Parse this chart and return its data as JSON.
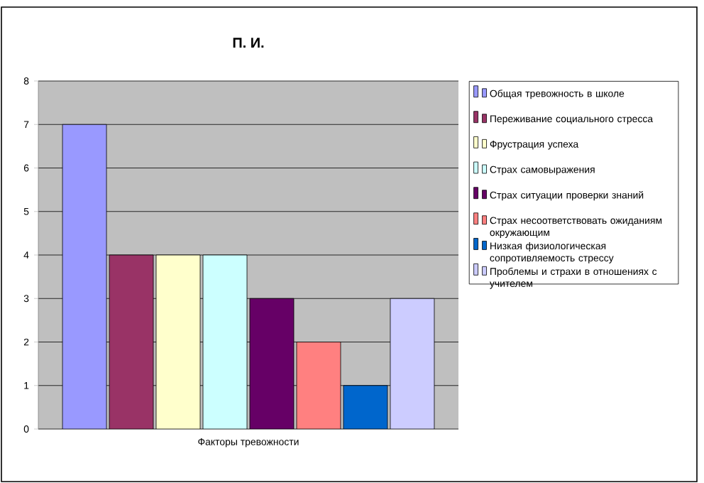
{
  "chart_data": {
    "type": "bar",
    "title": "П. И.",
    "categories": [
      "Факторы тревожности"
    ],
    "series": [
      {
        "name": "Общая тревожность в школе",
        "color": "#9999ff",
        "values": [
          7
        ]
      },
      {
        "name": "Переживание социального стресса",
        "color": "#993366",
        "values": [
          4
        ]
      },
      {
        "name": "Фрустрация успеха",
        "color": "#ffffcc",
        "values": [
          4
        ]
      },
      {
        "name": "Страх самовыражения",
        "color": "#ccffff",
        "values": [
          4
        ]
      },
      {
        "name": "Страх ситуации проверки знаний",
        "color": "#660066",
        "values": [
          3
        ]
      },
      {
        "name": "Страх несоответствовать ожиданиям окружающим",
        "color": "#ff8080",
        "values": [
          2
        ]
      },
      {
        "name": "Низкая физиологическая сопротивляемость стрессу",
        "color": "#0066cc",
        "values": [
          1
        ]
      },
      {
        "name": "Проблемы и страхи в отношениях с учителем",
        "color": "#ccccff",
        "values": [
          3
        ]
      }
    ],
    "ylim": [
      0,
      8
    ],
    "yticks": [
      0,
      1,
      2,
      3,
      4,
      5,
      6,
      7,
      8
    ],
    "grid": "y",
    "legend": "right"
  }
}
